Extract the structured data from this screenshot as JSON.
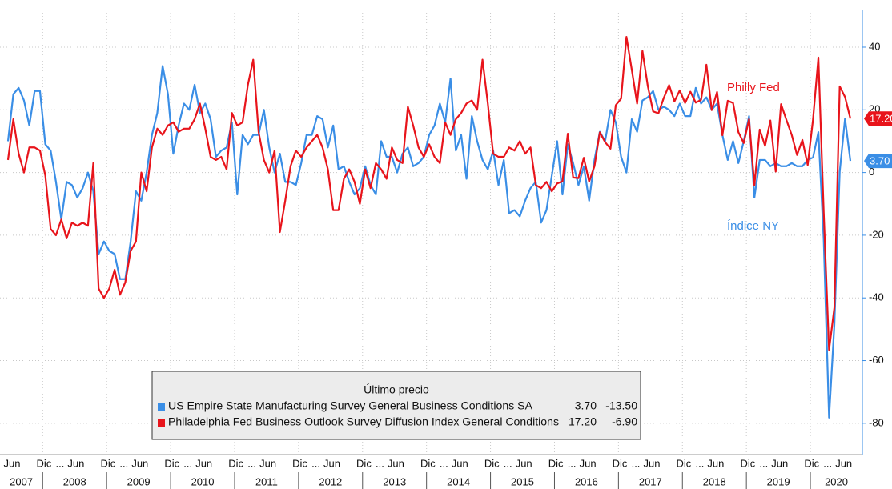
{
  "chart_data": {
    "type": "line",
    "x": [
      "2007-06",
      "2007-07",
      "2007-08",
      "2007-09",
      "2007-10",
      "2007-11",
      "2007-12",
      "2008-01",
      "2008-02",
      "2008-03",
      "2008-04",
      "2008-05",
      "2008-06",
      "2008-07",
      "2008-08",
      "2008-09",
      "2008-10",
      "2008-11",
      "2008-12",
      "2009-01",
      "2009-02",
      "2009-03",
      "2009-04",
      "2009-05",
      "2009-06",
      "2009-07",
      "2009-08",
      "2009-09",
      "2009-10",
      "2009-11",
      "2009-12",
      "2010-01",
      "2010-02",
      "2010-03",
      "2010-04",
      "2010-05",
      "2010-06",
      "2010-07",
      "2010-08",
      "2010-09",
      "2010-10",
      "2010-11",
      "2010-12",
      "2011-01",
      "2011-02",
      "2011-03",
      "2011-04",
      "2011-05",
      "2011-06",
      "2011-07",
      "2011-08",
      "2011-09",
      "2011-10",
      "2011-11",
      "2011-12",
      "2012-01",
      "2012-02",
      "2012-03",
      "2012-04",
      "2012-05",
      "2012-06",
      "2012-07",
      "2012-08",
      "2012-09",
      "2012-10",
      "2012-11",
      "2012-12",
      "2013-01",
      "2013-02",
      "2013-03",
      "2013-04",
      "2013-05",
      "2013-06",
      "2013-07",
      "2013-08",
      "2013-09",
      "2013-10",
      "2013-11",
      "2013-12",
      "2014-01",
      "2014-02",
      "2014-03",
      "2014-04",
      "2014-05",
      "2014-06",
      "2014-07",
      "2014-08",
      "2014-09",
      "2014-10",
      "2014-11",
      "2014-12",
      "2015-01",
      "2015-02",
      "2015-03",
      "2015-04",
      "2015-05",
      "2015-06",
      "2015-07",
      "2015-08",
      "2015-09",
      "2015-10",
      "2015-11",
      "2015-12",
      "2016-01",
      "2016-02",
      "2016-03",
      "2016-04",
      "2016-05",
      "2016-06",
      "2016-07",
      "2016-08",
      "2016-09",
      "2016-10",
      "2016-11",
      "2016-12",
      "2017-01",
      "2017-02",
      "2017-03",
      "2017-04",
      "2017-05",
      "2017-06",
      "2017-07",
      "2017-08",
      "2017-09",
      "2017-10",
      "2017-11",
      "2017-12",
      "2018-01",
      "2018-02",
      "2018-03",
      "2018-04",
      "2018-05",
      "2018-06",
      "2018-07",
      "2018-08",
      "2018-09",
      "2018-10",
      "2018-11",
      "2018-12",
      "2019-01",
      "2019-02",
      "2019-03",
      "2019-04",
      "2019-05",
      "2019-06",
      "2019-07",
      "2019-08",
      "2019-09",
      "2019-10",
      "2019-11",
      "2019-12",
      "2020-01",
      "2020-02",
      "2020-03",
      "2020-04",
      "2020-05",
      "2020-06",
      "2020-07",
      "2020-08"
    ],
    "series": [
      {
        "name": "US Empire State Manufacturing Survey General Business Conditions SA",
        "color": "#3a8ee6",
        "values": [
          10,
          25,
          27,
          23,
          15,
          26,
          26,
          9,
          7,
          -3,
          -15,
          -3,
          -4,
          -8,
          -5,
          0,
          -6,
          -26,
          -22,
          -25,
          -26,
          -34,
          -34,
          -22,
          -6,
          -9,
          0,
          12,
          19,
          34,
          25,
          6,
          15,
          22,
          20,
          28,
          19,
          22,
          17,
          5,
          7,
          8,
          16,
          -7,
          12,
          9,
          12,
          12,
          20,
          8,
          0,
          6,
          -3,
          -3,
          -4,
          3,
          12,
          12,
          18,
          17,
          8,
          15,
          1,
          2,
          -3,
          -7,
          -5,
          2,
          -4,
          -7,
          10,
          5,
          5,
          0,
          6,
          8,
          2,
          3,
          5,
          12,
          15,
          22,
          16,
          30,
          7,
          12,
          -2,
          18,
          10,
          4,
          1,
          7,
          -4,
          4,
          -13,
          -12,
          -14,
          -9,
          -5,
          -3,
          -16,
          -12,
          -1,
          10,
          -7,
          9,
          3,
          -4,
          2,
          -9,
          4,
          13,
          10,
          20,
          16,
          5,
          0,
          17,
          13,
          23,
          24,
          26,
          20,
          21,
          20,
          18,
          22,
          18,
          18,
          27,
          22,
          24,
          20,
          22,
          12,
          4,
          10,
          3,
          10,
          18,
          -8,
          4,
          4,
          2,
          3,
          2,
          2,
          3,
          2,
          2,
          4,
          4.8,
          12.9,
          -21.5,
          -78.2,
          -48.5,
          0.2,
          17.2,
          3.7
        ],
        "last": {
          "value": 3.7,
          "label": "3.70"
        },
        "change": {
          "value": -13.5,
          "label": "-13.50"
        }
      },
      {
        "name": "Philadelphia Fed Business Outlook Survey Diffusion Index General Conditions",
        "color": "#e8141b",
        "values": [
          4,
          17,
          6,
          0,
          8,
          8,
          7,
          -1,
          -18,
          -20,
          -15,
          -21,
          -16,
          -17,
          -16,
          -17,
          3,
          -37,
          -40,
          -37,
          -31,
          -39,
          -35,
          -25,
          -22,
          0,
          -6,
          8,
          14,
          12,
          15,
          16,
          13,
          14,
          14,
          17,
          22,
          14,
          5,
          4,
          5,
          1,
          19,
          15,
          16,
          28,
          36,
          13,
          4,
          0,
          7,
          -19,
          -9,
          2,
          7,
          5,
          8,
          10,
          12,
          8,
          1,
          -12,
          -12,
          -2,
          1,
          -3,
          -10,
          1,
          -5,
          3,
          1,
          -2,
          8,
          4,
          3,
          21,
          15,
          8,
          5,
          9,
          5,
          3,
          16,
          12,
          17,
          19,
          22,
          23,
          20,
          36,
          22,
          6,
          5,
          5,
          8,
          7,
          10,
          6,
          8,
          -4,
          -5,
          -3,
          -6,
          -3.5,
          -2.8,
          12.4,
          -1.6,
          -1.8,
          4.7,
          -2.9,
          2,
          12.8,
          9.7,
          7.6,
          21.5,
          23.6,
          43.3,
          32.8,
          22,
          38.8,
          27.6,
          19.5,
          18.9,
          23.8,
          27.9,
          22.7,
          26.2,
          22.2,
          25.8,
          22.3,
          23.2,
          34.4,
          19.9,
          25.7,
          11.9,
          22.9,
          22.2,
          12.9,
          9.4,
          17,
          -4.1,
          13.7,
          8.5,
          16.6,
          0.3,
          21.8,
          16.8,
          12,
          5.6,
          10.4,
          2.4,
          17,
          36.7,
          -12.7,
          -56.6,
          -43.1,
          27.5,
          24.1,
          17.2
        ],
        "last": {
          "value": 17.2,
          "label": "17.20"
        },
        "change": {
          "value": -6.9,
          "label": "-6.90"
        }
      }
    ],
    "ylim": [
      -90,
      52
    ],
    "yticks": [
      -80,
      -60,
      -40,
      -20,
      0,
      20,
      40
    ],
    "grid": true,
    "xticks": [
      {
        "value": "2007-06",
        "label": "Jun"
      },
      {
        "value": "2007-12",
        "label": "Dic"
      },
      {
        "value": "2008-03",
        "label": "..."
      },
      {
        "value": "2008-06",
        "label": "Jun"
      },
      {
        "value": "2008-12",
        "label": "Dic"
      },
      {
        "value": "2009-03",
        "label": "..."
      },
      {
        "value": "2009-06",
        "label": "Jun"
      },
      {
        "value": "2009-12",
        "label": "Dic"
      },
      {
        "value": "2010-03",
        "label": "..."
      },
      {
        "value": "2010-06",
        "label": "Jun"
      },
      {
        "value": "2010-12",
        "label": "Dic"
      },
      {
        "value": "2011-03",
        "label": "..."
      },
      {
        "value": "2011-06",
        "label": "Jun"
      },
      {
        "value": "2011-12",
        "label": "Dic"
      },
      {
        "value": "2012-03",
        "label": "..."
      },
      {
        "value": "2012-06",
        "label": "Jun"
      },
      {
        "value": "2012-12",
        "label": "Dic"
      },
      {
        "value": "2013-03",
        "label": "..."
      },
      {
        "value": "2013-06",
        "label": "Jun"
      },
      {
        "value": "2013-12",
        "label": "Dic"
      },
      {
        "value": "2014-03",
        "label": "..."
      },
      {
        "value": "2014-06",
        "label": "Jun"
      },
      {
        "value": "2014-12",
        "label": "Dic"
      },
      {
        "value": "2015-03",
        "label": "..."
      },
      {
        "value": "2015-06",
        "label": "Jun"
      },
      {
        "value": "2015-12",
        "label": "Dic"
      },
      {
        "value": "2016-03",
        "label": "..."
      },
      {
        "value": "2016-06",
        "label": "Jun"
      },
      {
        "value": "2016-12",
        "label": "Dic"
      },
      {
        "value": "2017-03",
        "label": "..."
      },
      {
        "value": "2017-06",
        "label": "Jun"
      },
      {
        "value": "2017-12",
        "label": "Dic"
      },
      {
        "value": "2018-03",
        "label": "..."
      },
      {
        "value": "2018-06",
        "label": "Jun"
      },
      {
        "value": "2018-12",
        "label": "Dic"
      },
      {
        "value": "2019-03",
        "label": "..."
      },
      {
        "value": "2019-06",
        "label": "Jun"
      },
      {
        "value": "2019-12",
        "label": "Dic"
      },
      {
        "value": "2020-03",
        "label": "..."
      },
      {
        "value": "2020-06",
        "label": "Jun"
      }
    ],
    "years": [
      "2007",
      "2008",
      "2009",
      "2010",
      "2011",
      "2012",
      "2013",
      "2014",
      "2015",
      "2016",
      "2017",
      "2018",
      "2019",
      "2020"
    ],
    "annotations": [
      {
        "text": "Philly Fed",
        "series": 1
      },
      {
        "text": "Índice NY",
        "series": 0
      }
    ],
    "legend": {
      "title": "Último precio"
    }
  }
}
